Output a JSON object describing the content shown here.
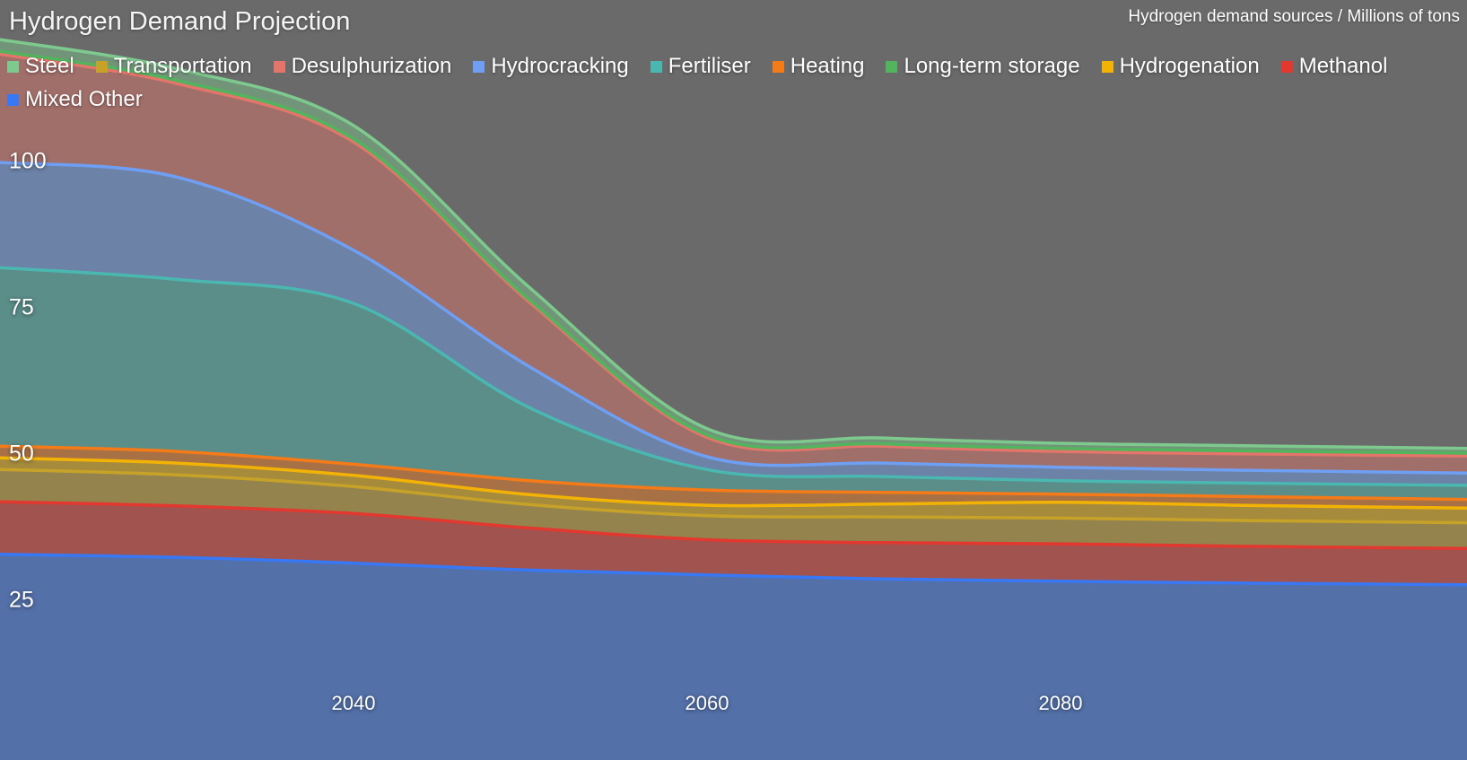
{
  "chart_data": {
    "type": "area",
    "stacked": true,
    "title": "Hydrogen Demand Projection",
    "subtitle": "Hydrogen demand sources / Millions of tons",
    "unit": "Millions of tons",
    "x_range": [
      2020,
      2103
    ],
    "x": [
      2020,
      2030,
      2040,
      2050,
      2060,
      2070,
      2080,
      2090,
      2103
    ],
    "x_ticks": [
      "2040",
      "2060",
      "2080"
    ],
    "y_ticks": [
      "25",
      "50",
      "75",
      "100"
    ],
    "ylim": [
      0,
      125
    ],
    "grid": false,
    "legend_position": "top-left",
    "legend_order": [
      "Steel",
      "Transportation",
      "Desulphurization",
      "Hydrocracking",
      "Fertiliser",
      "Heating",
      "Long-term storage",
      "Hydrogenation",
      "Methanol",
      "Mixed Other"
    ],
    "series": [
      {
        "name": "Mixed Other",
        "color": "#3878f5",
        "values": [
          33.0,
          32.5,
          31.5,
          30.3,
          29.5,
          28.8,
          28.4,
          28.1,
          27.8
        ]
      },
      {
        "name": "Methanol",
        "color": "#e2382f",
        "values": [
          9.0,
          8.8,
          8.5,
          7.2,
          6.0,
          6.2,
          6.4,
          6.3,
          6.2
        ]
      },
      {
        "name": "Transportation",
        "color": "#c7a229",
        "values": [
          5.5,
          5.3,
          4.6,
          4.0,
          4.1,
          4.4,
          4.4,
          4.4,
          4.4
        ]
      },
      {
        "name": "Hydrogenation",
        "color": "#f2b305",
        "values": [
          2.0,
          2.0,
          1.9,
          1.7,
          1.8,
          2.2,
          2.7,
          2.6,
          2.5
        ]
      },
      {
        "name": "Heating",
        "color": "#f57a18",
        "values": [
          2.0,
          2.0,
          1.9,
          2.4,
          2.6,
          2.0,
          1.4,
          1.5,
          1.5
        ]
      },
      {
        "name": "Fertiliser",
        "color": "#4ab8b0",
        "values": [
          30.5,
          29.4,
          27.5,
          12.4,
          3.5,
          2.7,
          2.3,
          2.3,
          2.4
        ]
      },
      {
        "name": "Hydrocracking",
        "color": "#6f9ff2",
        "values": [
          18.0,
          17.5,
          9.1,
          7.0,
          2.2,
          2.3,
          2.3,
          2.2,
          2.1
        ]
      },
      {
        "name": "Desulphurization",
        "color": "#e5756b",
        "values": [
          18.5,
          16.0,
          18.5,
          11.0,
          3.3,
          2.9,
          2.7,
          2.8,
          2.9
        ]
      },
      {
        "name": "Long-term storage",
        "color": "#53b45e",
        "values": [
          0.5,
          0.5,
          0.5,
          0.4,
          0.4,
          0.4,
          0.5,
          0.5,
          0.5
        ]
      },
      {
        "name": "Steel",
        "color": "#7dc98e",
        "values": [
          2.0,
          2.0,
          2.3,
          2.1,
          1.1,
          1.0,
          0.9,
          0.9,
          0.8
        ]
      }
    ]
  },
  "colors": {
    "background": "#6a6a6a",
    "text": "#ffffff",
    "area_fill_opacity": "0.45"
  }
}
